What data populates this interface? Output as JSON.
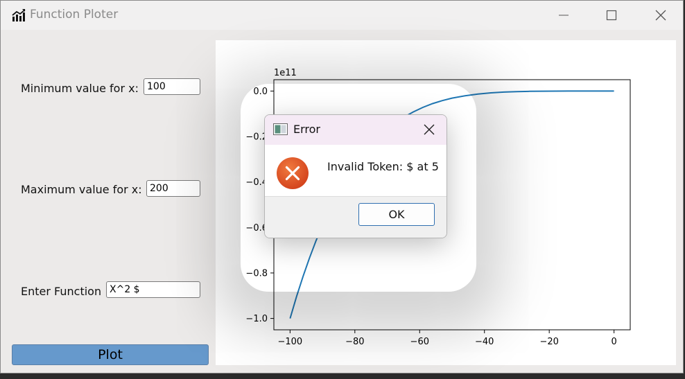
{
  "window": {
    "title": "Function Ploter"
  },
  "form": {
    "min_label": "Minimum value for x:",
    "min_value": "100",
    "max_label": "Maximum value for x:",
    "max_value": "200",
    "function_label": "Enter Function",
    "function_value": "X^2 $",
    "plot_button": "Plot"
  },
  "dialog": {
    "title": "Error",
    "message": "Invalid Token: $ at 5",
    "ok_label": "OK"
  },
  "colors": {
    "plot_button": "#6699cc",
    "line": "#1f77b4",
    "error_icon": "#e04e1e"
  },
  "chart_data": {
    "type": "line",
    "offset_label": "1e11",
    "xlim": [
      -105,
      5
    ],
    "ylim": [
      -1.05,
      0.05
    ],
    "x_ticks": [
      -100,
      -80,
      -60,
      -40,
      -20,
      0
    ],
    "x_tick_labels": [
      "−100",
      "−80",
      "−60",
      "−40",
      "−20",
      "0"
    ],
    "y_ticks": [
      0.0,
      -0.2,
      -0.4,
      -0.6,
      -0.8,
      -1.0
    ],
    "y_tick_labels": [
      "0.0",
      "−0.2",
      "−0.4",
      "−0.6",
      "−0.8",
      "−1.0"
    ],
    "series": [
      {
        "x": [
          -100,
          -98,
          -96,
          -94,
          -92,
          -90,
          -88,
          -86,
          -84,
          -82,
          -80,
          -77,
          -74,
          -71,
          -68,
          -65,
          -62,
          -59,
          -56,
          -53,
          -50,
          -46,
          -42,
          -38,
          -34,
          -30,
          -26,
          -22,
          -18,
          -14,
          -10,
          -6,
          -3,
          0
        ],
        "y": [
          -1.0,
          -0.904,
          -0.815,
          -0.734,
          -0.659,
          -0.59,
          -0.527,
          -0.47,
          -0.418,
          -0.371,
          -0.328,
          -0.271,
          -0.222,
          -0.18,
          -0.145,
          -0.116,
          -0.092,
          -0.072,
          -0.055,
          -0.042,
          -0.031,
          -0.021,
          -0.013,
          -0.008,
          -0.0045,
          -0.0024,
          -0.0012,
          -0.0005,
          -0.0002,
          -5e-05,
          -1e-05,
          0,
          0,
          0
        ]
      }
    ]
  }
}
